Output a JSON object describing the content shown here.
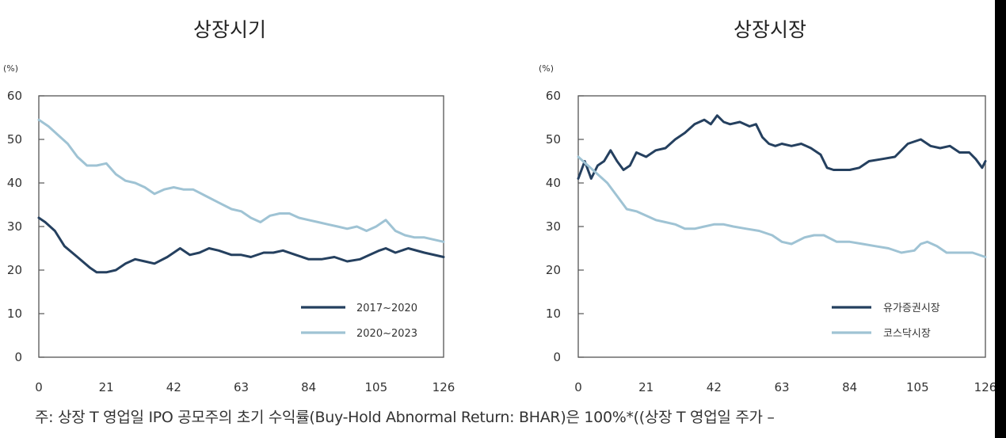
{
  "colors": {
    "dark": "#25405f",
    "light": "#9fc3d4"
  },
  "chart_data": [
    {
      "type": "line",
      "title": "상장시기",
      "unit": "(%)",
      "xticks": [
        0,
        21,
        42,
        63,
        84,
        105,
        126
      ],
      "yticks": [
        0,
        10,
        20,
        30,
        40,
        50,
        60
      ],
      "xlim": [
        0,
        126
      ],
      "ylim": [
        0,
        60
      ],
      "legend_position": "bottom-right",
      "series": [
        {
          "name": "2017~2020",
          "color": "#25405f",
          "x": [
            0,
            2,
            5,
            8,
            12,
            16,
            18,
            21,
            24,
            27,
            30,
            33,
            36,
            40,
            42,
            44,
            47,
            50,
            53,
            56,
            60,
            63,
            66,
            70,
            73,
            76,
            80,
            84,
            88,
            92,
            96,
            100,
            103,
            106,
            108,
            111,
            115,
            120,
            126
          ],
          "y": [
            32,
            31,
            29,
            25.5,
            23,
            20.5,
            19.5,
            19.5,
            20,
            21.5,
            22.5,
            22,
            21.5,
            23,
            24,
            25,
            23.5,
            24,
            25,
            24.5,
            23.5,
            23.5,
            23,
            24,
            24,
            24.5,
            23.5,
            22.5,
            22.5,
            23,
            22,
            22.5,
            23.5,
            24.5,
            25,
            24,
            25,
            24,
            23
          ]
        },
        {
          "name": "2020~2023",
          "color": "#9fc3d4",
          "x": [
            0,
            3,
            6,
            9,
            12,
            15,
            18,
            21,
            24,
            27,
            30,
            33,
            36,
            39,
            42,
            45,
            48,
            52,
            56,
            60,
            63,
            66,
            69,
            72,
            75,
            78,
            81,
            84,
            87,
            90,
            93,
            96,
            99,
            102,
            105,
            108,
            111,
            114,
            117,
            120,
            126
          ],
          "y": [
            54.5,
            53,
            51,
            49,
            46,
            44,
            44,
            44.5,
            42,
            40.5,
            40,
            39,
            37.5,
            38.5,
            39,
            38.5,
            38.5,
            37,
            35.5,
            34,
            33.5,
            32,
            31,
            32.5,
            33,
            33,
            32,
            31.5,
            31,
            30.5,
            30,
            29.5,
            30,
            29,
            30,
            31.5,
            29,
            28,
            27.5,
            27.5,
            26.5
          ]
        }
      ]
    },
    {
      "type": "line",
      "title": "상장시장",
      "unit": "(%)",
      "xticks": [
        0,
        21,
        42,
        63,
        84,
        105,
        126
      ],
      "yticks": [
        0,
        10,
        20,
        30,
        40,
        50,
        60
      ],
      "xlim": [
        0,
        126
      ],
      "ylim": [
        0,
        60
      ],
      "legend_position": "bottom-right",
      "series": [
        {
          "name": "유가증권시장",
          "color": "#25405f",
          "x": [
            0,
            2,
            4,
            6,
            8,
            10,
            12,
            14,
            16,
            18,
            21,
            24,
            27,
            30,
            33,
            36,
            39,
            41,
            43,
            45,
            47,
            50,
            53,
            55,
            57,
            59,
            61,
            63,
            66,
            69,
            72,
            75,
            77,
            79,
            81,
            84,
            87,
            90,
            94,
            98,
            102,
            106,
            109,
            112,
            115,
            118,
            121,
            123,
            125,
            126
          ],
          "y": [
            41,
            45,
            41,
            44,
            45,
            47.5,
            45,
            43,
            44,
            47,
            46,
            47.5,
            48,
            50,
            51.5,
            53.5,
            54.5,
            53.5,
            55.5,
            54,
            53.5,
            54,
            53,
            53.5,
            50.5,
            49,
            48.5,
            49,
            48.5,
            49,
            48,
            46.5,
            43.5,
            43,
            43,
            43,
            43.5,
            45,
            45.5,
            46,
            49,
            50,
            48.5,
            48,
            48.5,
            47,
            47,
            45.5,
            43.5,
            45
          ]
        },
        {
          "name": "코스닥시장",
          "color": "#9fc3d4",
          "x": [
            0,
            3,
            6,
            9,
            12,
            15,
            18,
            21,
            24,
            27,
            30,
            33,
            36,
            39,
            42,
            45,
            48,
            52,
            56,
            60,
            63,
            66,
            70,
            73,
            76,
            80,
            84,
            88,
            92,
            96,
            100,
            104,
            106,
            108,
            111,
            114,
            118,
            122,
            126
          ],
          "y": [
            46,
            44,
            42,
            40,
            37,
            34,
            33.5,
            32.5,
            31.5,
            31,
            30.5,
            29.5,
            29.5,
            30,
            30.5,
            30.5,
            30,
            29.5,
            29,
            28,
            26.5,
            26,
            27.5,
            28,
            28,
            26.5,
            26.5,
            26,
            25.5,
            25,
            24,
            24.5,
            26,
            26.5,
            25.5,
            24,
            24,
            24,
            23
          ]
        }
      ]
    }
  ],
  "footnote": "주: 상장 T 영업일 IPO 공모주의 초기 수익률(Buy-Hold Abnormal Return: BHAR)은 100%*((상장 T 영업일 주가 –"
}
